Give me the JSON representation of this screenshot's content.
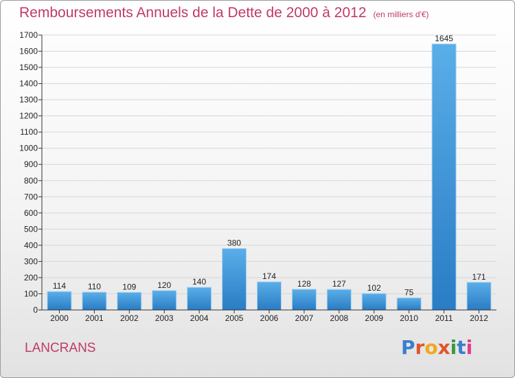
{
  "header": {
    "title": "Remboursements Annuels de la Dette de 2000 à 2012",
    "unit": "(en milliers d'€)"
  },
  "footer": {
    "commune": "LANCRANS",
    "logo_text": "Proxiti"
  },
  "colors": {
    "title": "#c0396b",
    "bar": "#3a8fd6",
    "bar_highlight": "#5aaee8",
    "axis": "#333333",
    "grid": "#d8d8d8"
  },
  "chart_data": {
    "type": "bar",
    "categories": [
      "2000",
      "2001",
      "2002",
      "2003",
      "2004",
      "2005",
      "2006",
      "2007",
      "2008",
      "2009",
      "2010",
      "2011",
      "2012"
    ],
    "values": [
      114,
      110,
      109,
      120,
      140,
      380,
      174,
      128,
      127,
      102,
      75,
      1645,
      171
    ],
    "title": "Remboursements Annuels de la Dette de 2000 à 2012",
    "xlabel": "",
    "ylabel": "",
    "ylim": [
      0,
      1700
    ],
    "yticks": [
      0,
      100,
      200,
      300,
      400,
      500,
      600,
      700,
      800,
      900,
      1000,
      1100,
      1200,
      1300,
      1400,
      1500,
      1600,
      1700
    ],
    "grid": true,
    "legend": "none"
  }
}
